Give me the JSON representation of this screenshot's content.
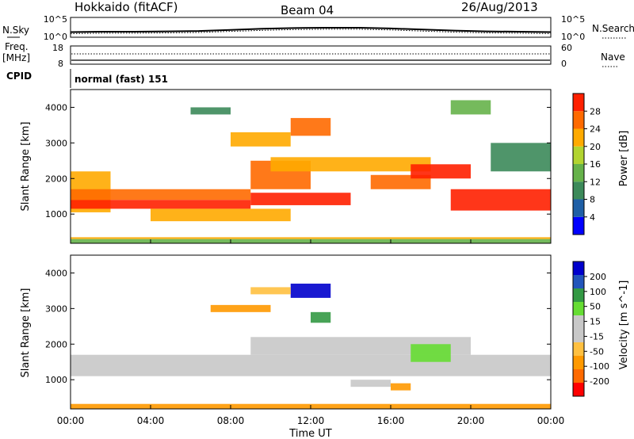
{
  "header": {
    "station": "Hokkaido (fitACF)",
    "beam": "Beam 04",
    "date": "26/Aug/2013"
  },
  "noise_panel": {
    "left_label": "N.Sky",
    "right_label": "N.Search",
    "left_ticks": [
      "10^5",
      "10^0"
    ],
    "right_ticks": [
      "10^5",
      "10^0"
    ]
  },
  "freq_panel": {
    "left_label_1": "Freq.",
    "left_label_2": "[MHz]",
    "right_label": "Nave",
    "left_ticks": [
      "18",
      "8"
    ],
    "right_ticks": [
      "60",
      "0"
    ]
  },
  "cpid": {
    "label": "CPID",
    "mode": "normal (fast) 151"
  },
  "colors": {
    "power_scale": [
      "#0000ff",
      "#1f5fa6",
      "#3c8a5a",
      "#66b24a",
      "#b2d430",
      "#ffaa00",
      "#ff6a00",
      "#ff2000"
    ],
    "velocity_scale": [
      "#ff0000",
      "#ff6a00",
      "#ff9900",
      "#ffc040",
      "#c8c8c8",
      "#c8c8c8",
      "#66dd33",
      "#339944",
      "#2255bb",
      "#0000cc"
    ]
  },
  "chart_data": [
    {
      "type": "line",
      "title": "",
      "series": [
        {
          "name": "N.Sky",
          "values": [
            1.2,
            1.3,
            1.3,
            1.4,
            1.5,
            1.8,
            2.1,
            2.3,
            2.4,
            2.4,
            2.2,
            1.9,
            1.6,
            1.4,
            1.3,
            1.2
          ]
        },
        {
          "name": "N.Search",
          "values": [
            1.0,
            1.1,
            1.1,
            1.2,
            1.3,
            1.6,
            1.9,
            2.1,
            2.2,
            2.2,
            2.0,
            1.7,
            1.4,
            1.2,
            1.1,
            1.0
          ]
        }
      ],
      "x": [
        "00:00",
        "01:36",
        "03:12",
        "04:48",
        "06:24",
        "08:00",
        "09:36",
        "11:12",
        "12:48",
        "14:24",
        "16:00",
        "17:36",
        "19:12",
        "20:48",
        "22:24",
        "24:00"
      ],
      "ylim": [
        0,
        5
      ],
      "log_scale": true
    },
    {
      "type": "line",
      "series": [
        {
          "name": "Freq.",
          "values": [
            10.9,
            10.9,
            10.9,
            10.9,
            10.9,
            10.9,
            10.9,
            10.9,
            10.9,
            10.9,
            10.9,
            10.9,
            10.9,
            10.9,
            10.9,
            10.9
          ]
        },
        {
          "name": "Nave",
          "values": [
            40,
            40,
            40,
            40,
            40,
            40,
            40,
            40,
            40,
            40,
            40,
            40,
            40,
            40,
            40,
            40
          ]
        }
      ],
      "ylim": [
        8,
        18
      ],
      "y2lim": [
        0,
        60
      ]
    },
    {
      "type": "heatmap",
      "panel": "power",
      "ylabel": "Slant Range [km]",
      "colorbar_label": "Power [dB]",
      "colorbar_ticks": [
        4,
        8,
        12,
        16,
        20,
        24,
        28
      ],
      "ylim": [
        180,
        4500
      ],
      "yticks": [
        1000,
        2000,
        3000,
        4000
      ],
      "xticks": [
        "00:00",
        "04:00",
        "08:00",
        "12:00",
        "16:00",
        "20:00",
        "00:00"
      ],
      "xlabel": "Time UT",
      "bands": [
        {
          "t": [
            0,
            24
          ],
          "r": [
            180,
            300
          ],
          "level": 3
        },
        {
          "t": [
            0,
            24
          ],
          "r": [
            300,
            350
          ],
          "level": 5
        },
        {
          "t": [
            0,
            2
          ],
          "r": [
            1050,
            2200
          ],
          "level": 5
        },
        {
          "t": [
            0,
            9
          ],
          "r": [
            1150,
            1400
          ],
          "level": 7
        },
        {
          "t": [
            0,
            9
          ],
          "r": [
            1400,
            1700
          ],
          "level": 6
        },
        {
          "t": [
            4,
            11
          ],
          "r": [
            800,
            1150
          ],
          "level": 5
        },
        {
          "t": [
            9,
            14
          ],
          "r": [
            1250,
            1600
          ],
          "level": 7
        },
        {
          "t": [
            9,
            12
          ],
          "r": [
            1700,
            2500
          ],
          "level": 6
        },
        {
          "t": [
            10,
            14
          ],
          "r": [
            2200,
            2600
          ],
          "level": 5
        },
        {
          "t": [
            14,
            18
          ],
          "r": [
            2200,
            2600
          ],
          "level": 5
        },
        {
          "t": [
            15,
            18
          ],
          "r": [
            1700,
            2100
          ],
          "level": 6
        },
        {
          "t": [
            17,
            20
          ],
          "r": [
            2000,
            2400
          ],
          "level": 7
        },
        {
          "t": [
            19,
            24
          ],
          "r": [
            1100,
            1700
          ],
          "level": 7
        },
        {
          "t": [
            11,
            13
          ],
          "r": [
            3200,
            3700
          ],
          "level": 6
        },
        {
          "t": [
            8,
            11
          ],
          "r": [
            2900,
            3300
          ],
          "level": 5
        },
        {
          "t": [
            6,
            8
          ],
          "r": [
            3800,
            4000
          ],
          "level": 2
        },
        {
          "t": [
            19,
            21
          ],
          "r": [
            3800,
            4200
          ],
          "level": 3
        },
        {
          "t": [
            21,
            24
          ],
          "r": [
            2200,
            3000
          ],
          "level": 2
        }
      ]
    },
    {
      "type": "heatmap",
      "panel": "velocity",
      "ylabel": "Slant Range [km]",
      "colorbar_label": "Velocity [m s^-1]",
      "colorbar_ticks": [
        200,
        100,
        50,
        15,
        -15,
        -50,
        -100,
        -200
      ],
      "ylim": [
        180,
        4500
      ],
      "yticks": [
        1000,
        2000,
        3000,
        4000
      ],
      "xticks": [
        "00:00",
        "04:00",
        "08:00",
        "12:00",
        "16:00",
        "20:00",
        "00:00"
      ],
      "xlabel": "Time UT",
      "bands": [
        {
          "t": [
            0,
            24
          ],
          "r": [
            180,
            320
          ],
          "level": 2
        },
        {
          "t": [
            0,
            24
          ],
          "r": [
            1100,
            1700
          ],
          "level": 4
        },
        {
          "t": [
            9,
            20
          ],
          "r": [
            1700,
            2200
          ],
          "level": 4
        },
        {
          "t": [
            11,
            13
          ],
          "r": [
            3300,
            3700
          ],
          "level": 9
        },
        {
          "t": [
            12,
            13
          ],
          "r": [
            2600,
            2900
          ],
          "level": 7
        },
        {
          "t": [
            17,
            19
          ],
          "r": [
            1500,
            2000
          ],
          "level": 6
        },
        {
          "t": [
            16,
            17
          ],
          "r": [
            700,
            900
          ],
          "level": 2
        },
        {
          "t": [
            14,
            16
          ],
          "r": [
            800,
            1000
          ],
          "level": 4
        },
        {
          "t": [
            7,
            10
          ],
          "r": [
            2900,
            3100
          ],
          "level": 2
        },
        {
          "t": [
            9,
            11
          ],
          "r": [
            3400,
            3600
          ],
          "level": 3
        }
      ]
    }
  ]
}
